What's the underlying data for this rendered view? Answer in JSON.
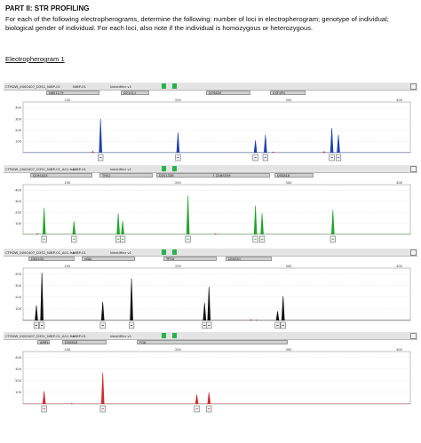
{
  "header": {
    "title": "PART II:  STR PROFILING",
    "instructions": "For each of the following electropherograms, determine the following: number of loci in electropherogram; genotype of individual; biological gender of individual.  For each loci, also note if the individual is homozygous or heterozygous.",
    "sub_label": "Electropherogram 1"
  },
  "colors": {
    "blue": "#1f3fb0",
    "green": "#21a52a",
    "black": "#111111",
    "red": "#d22a2a",
    "title_green": "#27b24a"
  },
  "chart_data": [
    {
      "type": "electropherogram",
      "dye": "blue",
      "title_fields": [
        "CTRDW_0000407_D3S1_NIBP-01",
        "NIBP-01",
        "Identifiler v1"
      ],
      "loci": [
        "D8S1179",
        "D21S11",
        "D7S820",
        "CSF1PO"
      ],
      "x_ticks": [
        100,
        200,
        300,
        400
      ],
      "xlim": [
        60,
        410
      ],
      "y_ticks": [
        400,
        300,
        200,
        100
      ],
      "ylim": [
        0,
        450
      ],
      "peaks": [
        {
          "x": 130,
          "height": 300
        },
        {
          "x": 200,
          "height": 180
        },
        {
          "x": 270,
          "height": 110
        },
        {
          "x": 279,
          "height": 160
        },
        {
          "x": 339,
          "height": 220
        },
        {
          "x": 345,
          "height": 160
        }
      ],
      "minor_peaks": [
        {
          "x": 123,
          "height": 18,
          "color": "red"
        },
        {
          "x": 332,
          "height": 15,
          "color": "red"
        },
        {
          "x": 286,
          "height": 10,
          "color": "red"
        }
      ]
    },
    {
      "type": "electropherogram",
      "dye": "green",
      "title_fields": [
        "CTRDW_0000407_D3S1_NIBP-01_A01.fsa",
        "NIBP-01",
        "Identifiler v1"
      ],
      "loci": [
        "D19S433",
        "TH01",
        "D2S1338",
        "D16S539",
        "D5S818"
      ],
      "x_ticks": [
        100,
        200,
        300,
        400
      ],
      "xlim": [
        60,
        410
      ],
      "y_ticks": [
        400,
        300,
        200,
        100
      ],
      "ylim": [
        0,
        450
      ],
      "peaks": [
        {
          "x": 79,
          "height": 240
        },
        {
          "x": 106,
          "height": 120
        },
        {
          "x": 146,
          "height": 190
        },
        {
          "x": 150,
          "height": 120
        },
        {
          "x": 209,
          "height": 350
        },
        {
          "x": 270,
          "height": 260
        },
        {
          "x": 276,
          "height": 190
        },
        {
          "x": 340,
          "height": 220
        }
      ],
      "minor_peaks": [
        {
          "x": 73,
          "height": 12,
          "color": "red"
        },
        {
          "x": 234,
          "height": 10,
          "color": "red"
        }
      ]
    },
    {
      "type": "electropherogram",
      "dye": "black",
      "title_fields": [
        "CTRDW_0000407_D3S1_NIBP-01_A01.fsa",
        "NIBP-01",
        "Identifiler v1"
      ],
      "loci": [
        "D8S433",
        "vWA",
        "TPOX",
        "D18S51"
      ],
      "x_ticks": [
        100,
        200,
        300,
        400
      ],
      "xlim": [
        60,
        410
      ],
      "y_ticks": [
        400,
        300,
        200,
        100
      ],
      "ylim": [
        0,
        450
      ],
      "peaks": [
        {
          "x": 72,
          "height": 130
        },
        {
          "x": 77,
          "height": 410
        },
        {
          "x": 132,
          "height": 160
        },
        {
          "x": 158,
          "height": 360
        },
        {
          "x": 224,
          "height": 150
        },
        {
          "x": 228,
          "height": 290
        },
        {
          "x": 290,
          "height": 80
        },
        {
          "x": 295,
          "height": 210
        }
      ],
      "minor_peaks": [
        {
          "x": 266,
          "height": 12,
          "color": "red"
        },
        {
          "x": 271,
          "height": 10,
          "color": "red"
        }
      ]
    },
    {
      "type": "electropherogram",
      "dye": "red",
      "title_fields": [
        "CTRDW_0000407_D3S1_NIBP-01_A01.fsa",
        "NIBP-01",
        "Identifiler v1"
      ],
      "loci": [
        "AMEL",
        "D5S818",
        "FGA"
      ],
      "x_ticks": [
        100,
        200,
        300,
        400
      ],
      "xlim": [
        60,
        410
      ],
      "y_ticks": [
        400,
        300,
        200,
        100
      ],
      "ylim": [
        0,
        450
      ],
      "peaks": [
        {
          "x": 79,
          "height": 110
        },
        {
          "x": 132,
          "height": 270
        },
        {
          "x": 217,
          "height": 80
        },
        {
          "x": 228,
          "height": 100
        }
      ],
      "minor_peaks": [
        {
          "x": 104,
          "height": 8,
          "color": "red"
        }
      ]
    }
  ]
}
